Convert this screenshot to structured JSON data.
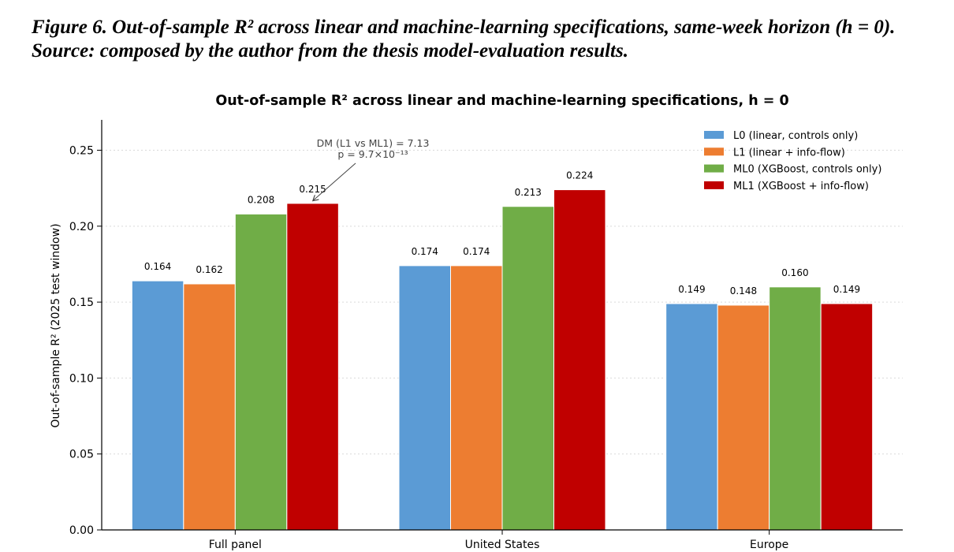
{
  "caption": {
    "line1": "Figure 6. Out-of-sample R² across linear and machine-learning specifications, same-week horizon (h = 0).",
    "line2": "Source: composed by the author from the thesis model-evaluation results."
  },
  "chart_data": {
    "type": "bar",
    "title": "Out-of-sample R² across linear and machine-learning specifications, h = 0",
    "xlabel": "",
    "ylabel": "Out-of-sample R² (2025 test window)",
    "ylim": [
      0,
      0.27
    ],
    "yticks": [
      0.0,
      0.05,
      0.1,
      0.15,
      0.2,
      0.25
    ],
    "ytick_labels": [
      "0.00",
      "0.05",
      "0.10",
      "0.15",
      "0.20",
      "0.25"
    ],
    "grid": "horizontal dotted",
    "legend_position": "top-right",
    "categories": [
      "Full panel",
      "United States",
      "Europe"
    ],
    "series": [
      {
        "name": "L0  (linear, controls only)",
        "color": "#5b9bd5",
        "values": [
          0.164,
          0.174,
          0.149
        ],
        "labels": [
          "0.164",
          "0.174",
          "0.149"
        ]
      },
      {
        "name": "L1  (linear + info-flow)",
        "color": "#ed7d31",
        "values": [
          0.162,
          0.174,
          0.148
        ],
        "labels": [
          "0.162",
          "0.174",
          "0.148"
        ]
      },
      {
        "name": "ML0 (XGBoost, controls only)",
        "color": "#70ad47",
        "values": [
          0.208,
          0.213,
          0.16
        ],
        "labels": [
          "0.208",
          "0.213",
          "0.160"
        ]
      },
      {
        "name": "ML1 (XGBoost + info-flow)",
        "color": "#c00000",
        "values": [
          0.215,
          0.224,
          0.149
        ],
        "labels": [
          "0.215",
          "0.224",
          "0.149"
        ]
      }
    ],
    "annotation": {
      "line1": "DM (L1 vs ML1) = 7.13",
      "line2": "p = 9.7×10⁻¹³",
      "target_category": 0,
      "target_series": 3
    }
  }
}
